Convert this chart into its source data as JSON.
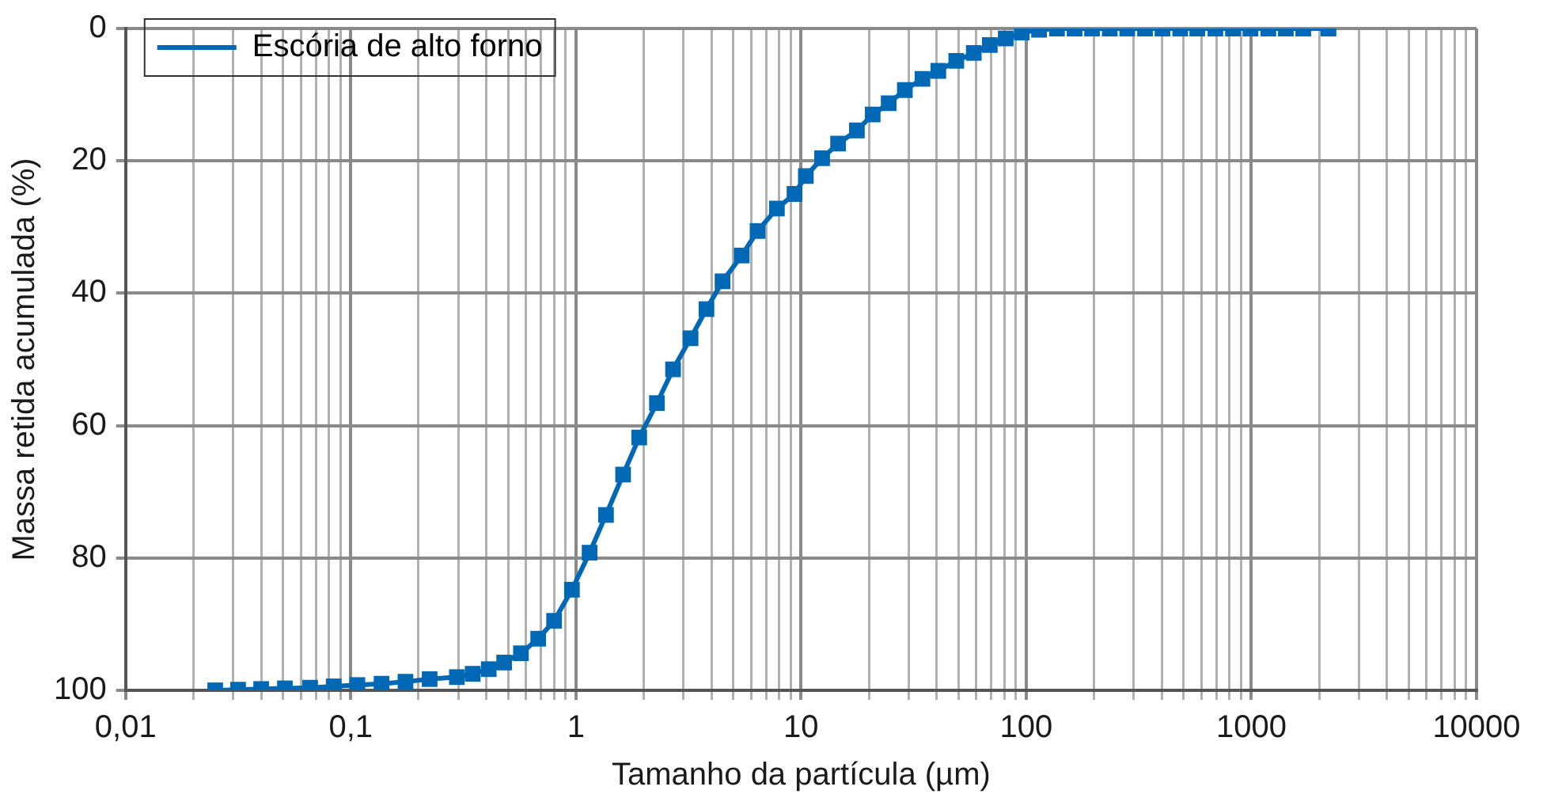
{
  "chart_data": {
    "type": "line",
    "xlabel": "Tamanho da partícula (µm)",
    "ylabel": "Massa retida acumulada (%)",
    "log": "x",
    "grid": true,
    "legend": "top left",
    "marker": "square",
    "line_style": "solid",
    "xlim": [
      0.01,
      10000
    ],
    "xticks": [
      {
        "value": 0.01,
        "label": "0,01"
      },
      {
        "value": 0.02,
        "label": null
      },
      {
        "value": 0.03,
        "label": null
      },
      {
        "value": 0.04,
        "label": null
      },
      {
        "value": 0.05,
        "label": null
      },
      {
        "value": 0.06,
        "label": null
      },
      {
        "value": 0.07,
        "label": null
      },
      {
        "value": 0.08,
        "label": null
      },
      {
        "value": 0.09,
        "label": null
      },
      {
        "value": 0.1,
        "label": "0,1"
      },
      {
        "value": 0.2,
        "label": null
      },
      {
        "value": 0.3,
        "label": null
      },
      {
        "value": 0.4,
        "label": null
      },
      {
        "value": 0.5,
        "label": null
      },
      {
        "value": 0.6,
        "label": null
      },
      {
        "value": 0.7,
        "label": null
      },
      {
        "value": 0.8,
        "label": null
      },
      {
        "value": 0.9,
        "label": null
      },
      1,
      {
        "value": 2,
        "label": null
      },
      {
        "value": 3,
        "label": null
      },
      {
        "value": 4,
        "label": null
      },
      {
        "value": 5,
        "label": null
      },
      {
        "value": 6,
        "label": null
      },
      {
        "value": 7,
        "label": null
      },
      {
        "value": 8,
        "label": null
      },
      {
        "value": 9,
        "label": null
      },
      10,
      {
        "value": 20,
        "label": null
      },
      {
        "value": 30,
        "label": null
      },
      {
        "value": 40,
        "label": null
      },
      {
        "value": 50,
        "label": null
      },
      {
        "value": 60,
        "label": null
      },
      {
        "value": 70,
        "label": null
      },
      {
        "value": 80,
        "label": null
      },
      {
        "value": 90,
        "label": null
      },
      100,
      {
        "value": 200,
        "label": null
      },
      {
        "value": 300,
        "label": null
      },
      {
        "value": 400,
        "label": null
      },
      {
        "value": 500,
        "label": null
      },
      {
        "value": 600,
        "label": null
      },
      {
        "value": 700,
        "label": null
      },
      {
        "value": 800,
        "label": null
      },
      {
        "value": 900,
        "label": null
      },
      1000,
      {
        "value": 2000,
        "label": null
      },
      {
        "value": 3000,
        "label": null
      },
      {
        "value": 4000,
        "label": null
      },
      {
        "value": 5000,
        "label": null
      },
      {
        "value": 6000,
        "label": null
      },
      {
        "value": 7000,
        "label": null
      },
      {
        "value": 8000,
        "label": null
      },
      {
        "value": 9000,
        "label": null
      },
      10000
    ],
    "ylim": [
      100,
      0
    ],
    "yticks": [
      0,
      20,
      40,
      60,
      80,
      100
    ],
    "series": [
      {
        "name": "Escória de alto forno",
        "color": "#0068b4",
        "x": [
          0.025,
          0.0316,
          0.04,
          0.051,
          0.066,
          0.084,
          0.107,
          0.137,
          0.175,
          0.224,
          0.296,
          0.348,
          0.41,
          0.48,
          0.57,
          0.68,
          0.8,
          0.96,
          1.15,
          1.36,
          1.62,
          1.91,
          2.29,
          2.7,
          3.23,
          3.8,
          4.48,
          5.45,
          6.41,
          7.81,
          9.35,
          10.5,
          12.4,
          14.6,
          17.7,
          20.8,
          24.5,
          28.9,
          34.6,
          40.7,
          48.9,
          58.5,
          68.9,
          81.1,
          95.5,
          114,
          137,
          164,
          196,
          235,
          281,
          337,
          403,
          483,
          575,
          692,
          828,
          991,
          1189,
          1422,
          1700,
          2200
        ],
        "values": [
          100,
          99.9,
          99.8,
          99.7,
          99.6,
          99.4,
          99.2,
          99,
          98.7,
          98.3,
          98,
          97.5,
          96.8,
          95.8,
          94.4,
          92.2,
          89.5,
          84.8,
          79.2,
          73.5,
          67.4,
          61.8,
          56.6,
          51.5,
          46.8,
          42.4,
          38.2,
          34.3,
          30.6,
          27.2,
          25,
          22.3,
          19.6,
          17.4,
          15.4,
          13,
          11.3,
          9.3,
          7.6,
          6.4,
          4.9,
          3.7,
          2.5,
          1.5,
          0.6,
          0.2,
          0,
          0,
          0,
          0,
          0,
          0,
          0,
          0,
          0,
          0,
          0,
          0,
          0,
          0,
          0,
          0
        ]
      }
    ]
  }
}
